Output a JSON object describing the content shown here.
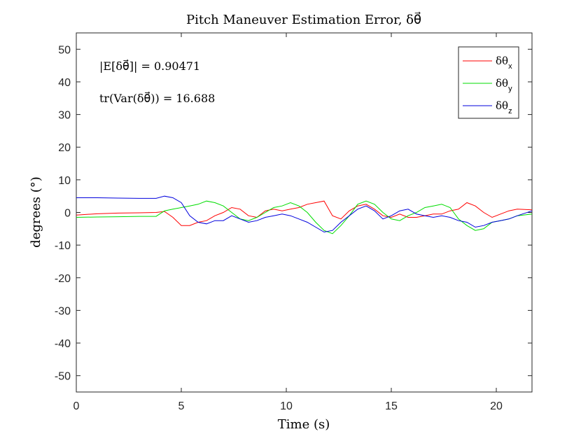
{
  "chart_data": {
    "type": "line",
    "title": "Pitch Maneuver Estimation Error, δθ⃗",
    "xlabel": "Time (s)",
    "ylabel": "degrees (°)",
    "xlim": [
      0,
      21.7
    ],
    "ylim": [
      -55,
      55
    ],
    "xticks": [
      0,
      5,
      10,
      15,
      20
    ],
    "yticks": [
      -50,
      -40,
      -30,
      -20,
      -10,
      0,
      10,
      20,
      30,
      40,
      50
    ],
    "xtick_labels": [
      "0",
      "5",
      "10",
      "15",
      "20"
    ],
    "ytick_labels": [
      "-50",
      "-40",
      "-30",
      "-20",
      "-10",
      "0",
      "10",
      "20",
      "30",
      "40",
      "50"
    ],
    "grid": false,
    "legend_position": "top-right",
    "annotations": [
      "|E[δθ⃗]| = 0.90471",
      "tr(Var(δθ⃗)) = 16.688"
    ],
    "series": [
      {
        "name": "δθx",
        "label_base": "δθ",
        "label_sub": "x",
        "color": "#ff0000",
        "x": [
          0,
          1,
          2,
          3,
          3.8,
          4.2,
          4.6,
          5.0,
          5.4,
          5.8,
          6.2,
          6.6,
          7.0,
          7.4,
          7.8,
          8.2,
          8.6,
          9.0,
          9.4,
          9.8,
          10.2,
          10.6,
          11.0,
          11.4,
          11.8,
          12.2,
          12.6,
          13.0,
          13.4,
          13.8,
          14.2,
          14.6,
          15.0,
          15.4,
          15.8,
          16.2,
          16.6,
          17.0,
          17.4,
          17.8,
          18.2,
          18.6,
          19.0,
          19.4,
          19.8,
          20.2,
          20.6,
          21.0,
          21.7
        ],
        "y": [
          -0.8,
          -0.4,
          -0.2,
          -0.1,
          0,
          0.3,
          -1.5,
          -4,
          -4,
          -3,
          -2.5,
          -1,
          0,
          1.5,
          1,
          -1,
          -1.5,
          0.5,
          1,
          0.5,
          1,
          1.5,
          2.5,
          3,
          3.5,
          -1,
          -2,
          0.5,
          2,
          2.5,
          1,
          -1,
          -1.5,
          -0.5,
          -1.5,
          -1.5,
          -1,
          -0.5,
          -0.5,
          0.5,
          1,
          3,
          2,
          0,
          -1.5,
          -0.5,
          0.5,
          1,
          0.8
        ]
      },
      {
        "name": "δθy",
        "label_base": "δθ",
        "label_sub": "y",
        "color": "#00dd00",
        "x": [
          0,
          1,
          2,
          3,
          3.8,
          4.2,
          4.6,
          5.0,
          5.4,
          5.8,
          6.2,
          6.6,
          7.0,
          7.4,
          7.8,
          8.2,
          8.6,
          9.0,
          9.4,
          9.8,
          10.2,
          10.6,
          11.0,
          11.4,
          11.8,
          12.2,
          12.6,
          13.0,
          13.4,
          13.8,
          14.2,
          14.6,
          15.0,
          15.4,
          15.8,
          16.2,
          16.6,
          17.0,
          17.4,
          17.8,
          18.2,
          18.6,
          19.0,
          19.4,
          19.8,
          20.2,
          20.6,
          21.0,
          21.7
        ],
        "y": [
          -1.5,
          -1.4,
          -1.3,
          -1.2,
          -1.2,
          0.5,
          1,
          1.5,
          2,
          2.5,
          3.5,
          3,
          2,
          0,
          -2,
          -2.5,
          -1.5,
          0,
          1.5,
          2,
          3,
          2,
          0,
          -3,
          -5.5,
          -6.5,
          -4,
          -1,
          2.5,
          3.5,
          2.5,
          0,
          -2,
          -2.5,
          -1,
          0,
          1.5,
          2,
          2.5,
          1.5,
          -2,
          -4,
          -5.5,
          -5,
          -3,
          -2.5,
          -2,
          -1,
          -0.5
        ]
      },
      {
        "name": "δθz",
        "label_base": "δθ",
        "label_sub": "z",
        "color": "#0000dd",
        "x": [
          0,
          1,
          2,
          3,
          3.8,
          4.2,
          4.6,
          5.0,
          5.4,
          5.8,
          6.2,
          6.6,
          7.0,
          7.4,
          7.8,
          8.2,
          8.6,
          9.0,
          9.4,
          9.8,
          10.2,
          10.6,
          11.0,
          11.4,
          11.8,
          12.2,
          12.6,
          13.0,
          13.4,
          13.8,
          14.2,
          14.6,
          15.0,
          15.4,
          15.8,
          16.2,
          16.6,
          17.0,
          17.4,
          17.8,
          18.2,
          18.6,
          19.0,
          19.4,
          19.8,
          20.2,
          20.6,
          21.0,
          21.7
        ],
        "y": [
          4.5,
          4.5,
          4.4,
          4.3,
          4.3,
          5,
          4.5,
          3,
          -1,
          -3,
          -3.5,
          -2.5,
          -2.5,
          -1,
          -2,
          -3,
          -2.5,
          -1.5,
          -1,
          -0.5,
          -1,
          -2,
          -3,
          -4.5,
          -6,
          -5.5,
          -3,
          -1,
          1,
          2,
          0.5,
          -2,
          -1,
          0.5,
          1,
          -0.5,
          -1,
          -1.5,
          -1,
          -1.5,
          -2.5,
          -3,
          -4.5,
          -4,
          -3,
          -2.5,
          -2,
          -1,
          0.5
        ]
      }
    ]
  }
}
